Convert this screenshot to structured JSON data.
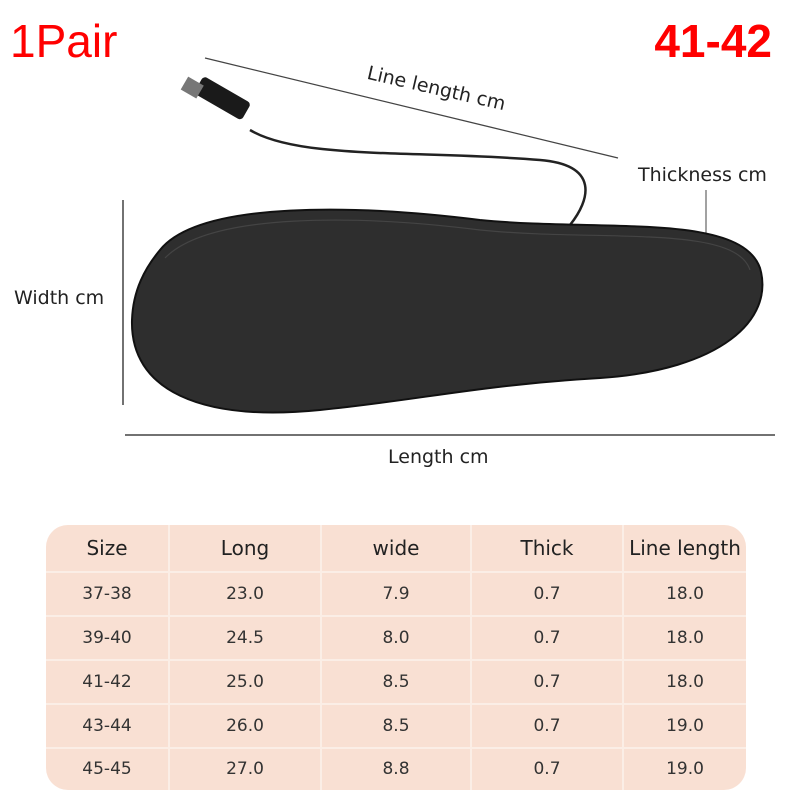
{
  "header": {
    "quantity": "1Pair",
    "size": "41-42"
  },
  "diagram": {
    "line_length_label": "Line length cm",
    "thickness_label": "Thickness cm",
    "width_label": "Width cm",
    "length_label": "Length cm"
  },
  "table": {
    "headers": [
      "Size",
      "Long",
      "wide",
      "Thick",
      "Line length"
    ],
    "rows": [
      [
        "37-38",
        "23.0",
        "7.9",
        "0.7",
        "18.0"
      ],
      [
        "39-40",
        "24.5",
        "8.0",
        "0.7",
        "18.0"
      ],
      [
        "41-42",
        "25.0",
        "8.5",
        "0.7",
        "18.0"
      ],
      [
        "43-44",
        "26.0",
        "8.5",
        "0.7",
        "19.0"
      ],
      [
        "45-45",
        "27.0",
        "8.8",
        "0.7",
        "19.0"
      ]
    ]
  },
  "colors": {
    "accent": "#ff0000",
    "table_bg": "#f9e0d3"
  }
}
